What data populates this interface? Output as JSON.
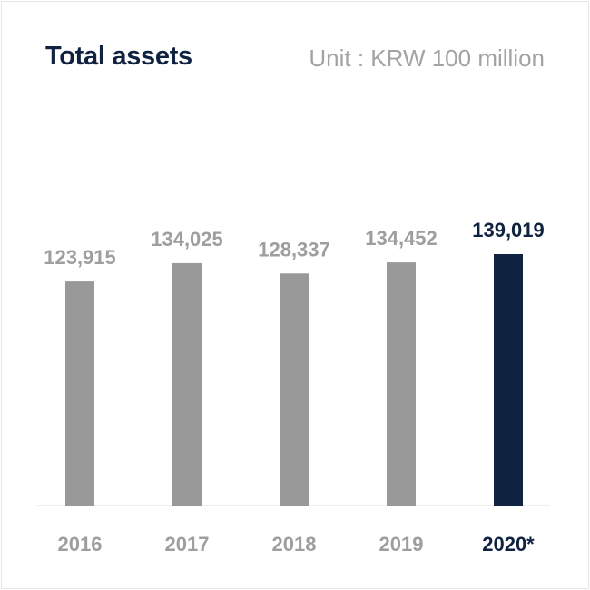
{
  "header": {
    "title": "Total assets",
    "unit": "Unit : KRW 100 million"
  },
  "colors": {
    "bar": "#999999",
    "highlight": "#0f2340",
    "value_label": "#9e9e9e",
    "axis": "#dddddd"
  },
  "chart_data": {
    "type": "bar",
    "categories": [
      "2016",
      "2017",
      "2018",
      "2019",
      "2020*"
    ],
    "values": [
      123915,
      134025,
      128337,
      134452,
      139019
    ],
    "value_labels": [
      "123,915",
      "134,025",
      "128,337",
      "134,452",
      "139,019"
    ],
    "highlight_index": 4,
    "title": "Total assets",
    "ylabel": "Unit : KRW 100 million",
    "ylim": [
      0,
      139019
    ],
    "grid": false,
    "legend": "none"
  }
}
